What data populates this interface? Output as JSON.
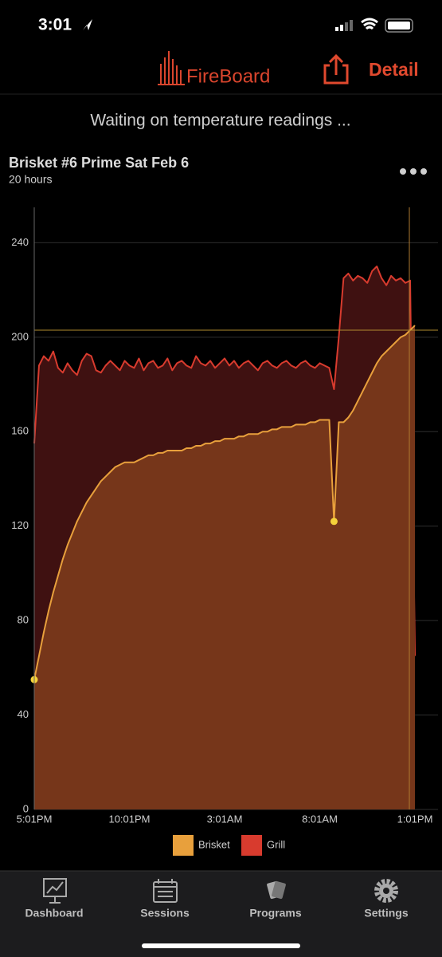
{
  "status_bar": {
    "time": "3:01"
  },
  "header": {
    "brand": "FireBoard",
    "action": "Detail"
  },
  "status_message": "Waiting on temperature readings ...",
  "session": {
    "title": "Brisket #6 Prime Sat Feb 6",
    "duration": "20 hours"
  },
  "chart_data": {
    "type": "area",
    "categories": [
      "5:01PM",
      null,
      null,
      null,
      null,
      null,
      null,
      null,
      null,
      null,
      null,
      null,
      null,
      null,
      null,
      null,
      null,
      null,
      null,
      null,
      "10:01PM",
      null,
      null,
      null,
      null,
      null,
      null,
      null,
      null,
      null,
      null,
      null,
      null,
      null,
      null,
      null,
      null,
      null,
      null,
      null,
      "3:01AM",
      null,
      null,
      null,
      null,
      null,
      null,
      null,
      null,
      null,
      null,
      null,
      null,
      null,
      null,
      null,
      null,
      null,
      null,
      null,
      "8:01AM",
      null,
      null,
      null,
      null,
      null,
      null,
      null,
      null,
      null,
      null,
      null,
      null,
      null,
      null,
      null,
      null,
      null,
      null,
      null,
      "1:01PM"
    ],
    "series": [
      {
        "name": "Grill",
        "color": "#d83b2e",
        "fill": "#3f1111",
        "values": [
          155,
          188,
          192,
          190,
          194,
          187,
          185,
          189,
          186,
          184,
          190,
          193,
          192,
          186,
          185,
          188,
          190,
          188,
          186,
          190,
          188,
          187,
          191,
          186,
          189,
          190,
          187,
          188,
          191,
          186,
          189,
          190,
          188,
          187,
          192,
          189,
          188,
          190,
          187,
          189,
          191,
          188,
          190,
          187,
          189,
          190,
          188,
          186,
          189,
          190,
          188,
          187,
          189,
          190,
          188,
          187,
          189,
          190,
          188,
          187,
          189,
          188,
          187,
          178,
          200,
          225,
          227,
          224,
          226,
          225,
          223,
          228,
          230,
          225,
          222,
          226,
          224,
          225,
          223,
          224,
          65
        ]
      },
      {
        "name": "Brisket",
        "color": "#e8a03c",
        "fill": "#76361a",
        "values": [
          55,
          65,
          75,
          84,
          92,
          99,
          106,
          112,
          117,
          122,
          126,
          130,
          133,
          136,
          139,
          141,
          143,
          145,
          146,
          147,
          147,
          147,
          148,
          149,
          150,
          150,
          151,
          151,
          152,
          152,
          152,
          152,
          153,
          153,
          154,
          154,
          155,
          155,
          156,
          156,
          157,
          157,
          157,
          158,
          158,
          159,
          159,
          159,
          160,
          160,
          161,
          161,
          162,
          162,
          162,
          163,
          163,
          163,
          164,
          164,
          165,
          165,
          165,
          122,
          164,
          164,
          166,
          169,
          173,
          177,
          181,
          185,
          189,
          192,
          194,
          196,
          198,
          200,
          201,
          203,
          205
        ]
      }
    ],
    "legend_order": [
      "Brisket",
      "Grill"
    ],
    "ylim": [
      0,
      255
    ],
    "yticks": [
      0,
      40,
      80,
      120,
      160,
      200,
      240
    ],
    "hline": 203,
    "grid": true
  },
  "tab_bar": {
    "tabs": [
      "Dashboard",
      "Sessions",
      "Programs",
      "Settings"
    ]
  }
}
